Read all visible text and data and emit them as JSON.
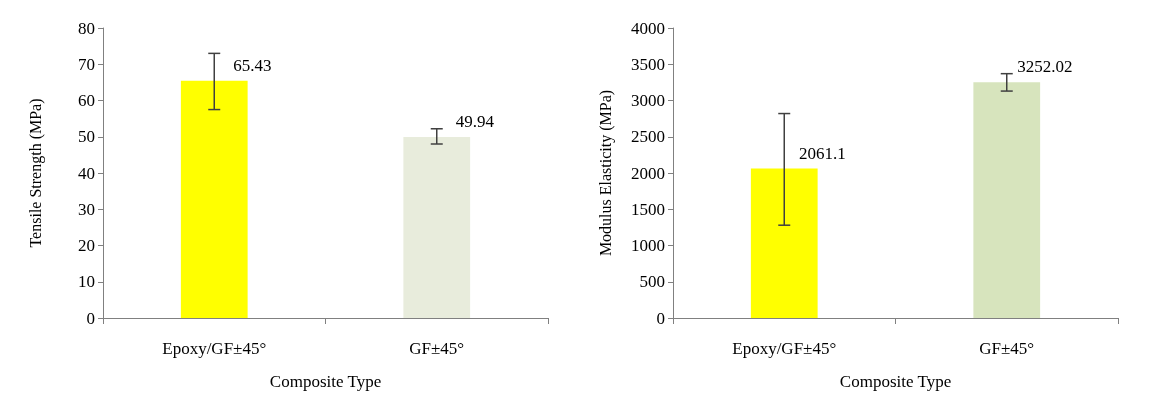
{
  "chart_data": [
    {
      "type": "bar",
      "categories": [
        "Epoxy/GF±45°",
        "GF±45°"
      ],
      "values": [
        65.43,
        49.94
      ],
      "colors": [
        "#ffff00",
        "#e8ecdc"
      ],
      "errors": [
        [
          57.5,
          73
        ],
        [
          48,
          52.2
        ]
      ],
      "ylim": [
        0,
        80
      ],
      "yticks": [
        0,
        10,
        20,
        30,
        40,
        50,
        60,
        70,
        80
      ],
      "xlabel": "Composite Type",
      "ylabel": "Tensile Strength (MPa)",
      "data_labels": true,
      "grid": false
    },
    {
      "type": "bar",
      "categories": [
        "Epoxy/GF±45°",
        "GF±45°"
      ],
      "values": [
        2061.1,
        3252.02
      ],
      "colors": [
        "#ffff00",
        "#d7e4bd"
      ],
      "errors": [
        [
          1280,
          2820
        ],
        [
          3130,
          3370
        ]
      ],
      "ylim": [
        0,
        4000
      ],
      "yticks": [
        0,
        500,
        1000,
        1500,
        2000,
        2500,
        3000,
        3500,
        4000
      ],
      "xlabel": "Composite Type",
      "ylabel": "Modulus Elasticity (MPa)",
      "data_labels": true,
      "grid": false
    }
  ]
}
